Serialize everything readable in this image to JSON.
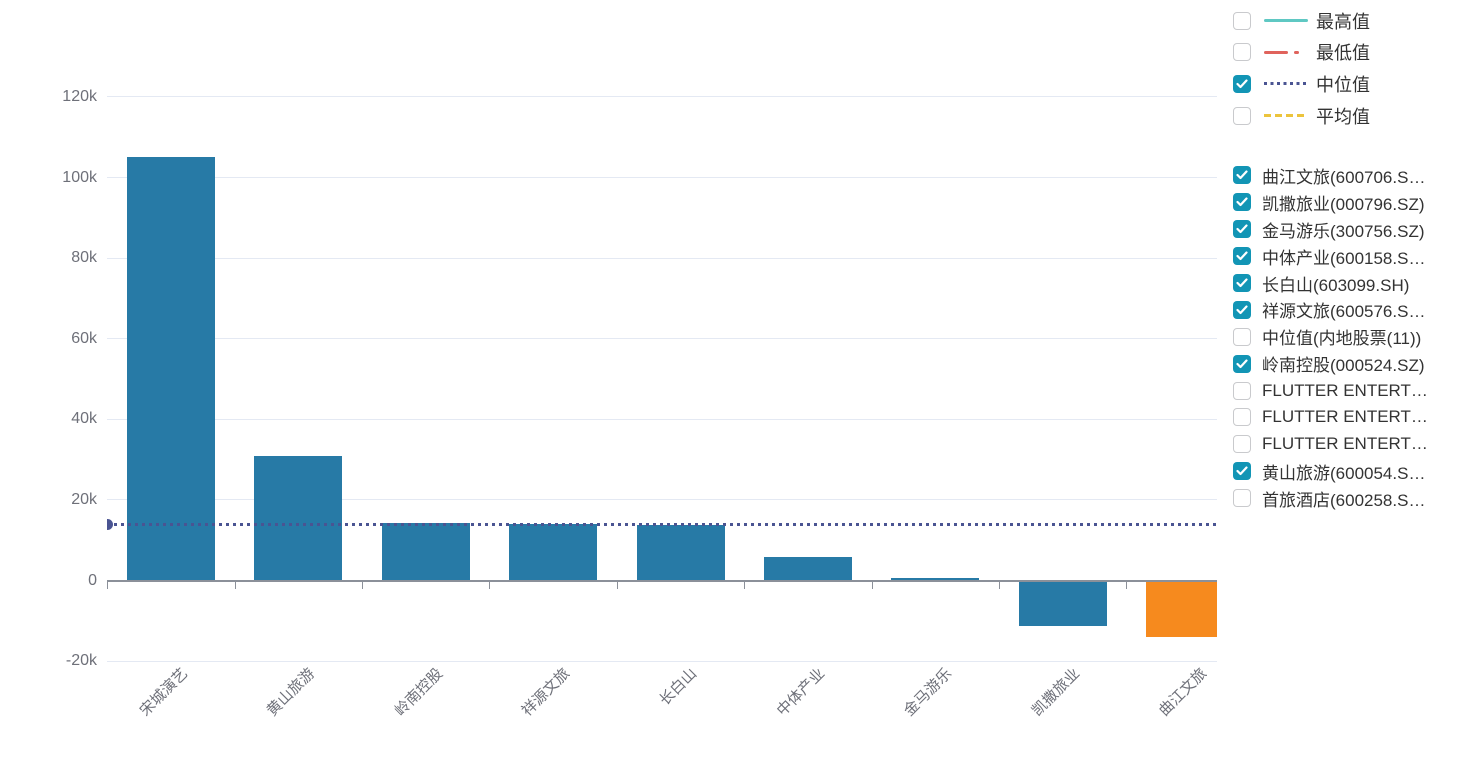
{
  "colors": {
    "bar_blue": "#277aa6",
    "bar_orange": "#f68a1e",
    "median_line": "#4a5492",
    "legend_max_teal": "#5fc8c3",
    "legend_min_red": "#e0635c",
    "legend_avg_yellow": "#ecc43d",
    "checkbox_checked": "#1295b5",
    "axis_text": "#6e7079",
    "grid_line": "#e4e9f3",
    "axis_line": "#8b9099",
    "legend_text": "#333333"
  },
  "chart_data": {
    "type": "bar",
    "title": "",
    "xlabel": "",
    "ylabel": "",
    "categories": [
      "宋城演艺",
      "黄山旅游",
      "岭南控股",
      "祥源文旅",
      "长白山",
      "中体产业",
      "金马游乐",
      "凯撒旅业",
      "曲江文旅"
    ],
    "values": [
      105000,
      31000,
      14200,
      13900,
      13800,
      5900,
      700,
      -11000,
      -13700
    ],
    "bar_colors": [
      "#277aa6",
      "#277aa6",
      "#277aa6",
      "#277aa6",
      "#277aa6",
      "#277aa6",
      "#277aa6",
      "#277aa6",
      "#f68a1e"
    ],
    "ylim": [
      -20000,
      120000
    ],
    "ytick_step": 20000,
    "ytick_labels": [
      "120k",
      "100k",
      "80k",
      "60k",
      "40k",
      "20k",
      "0",
      "-20k"
    ],
    "ytick_values": [
      120000,
      100000,
      80000,
      60000,
      40000,
      20000,
      0,
      -20000
    ],
    "grid": true,
    "legend_position": "right",
    "median_line": {
      "label": "中位值",
      "value": 14000
    }
  },
  "legend": {
    "lines": [
      {
        "label": "最高值",
        "checked": false,
        "style": "solid",
        "color": "#5fc8c3"
      },
      {
        "label": "最低值",
        "checked": false,
        "style": "dash-dot",
        "color": "#e0635c"
      },
      {
        "label": "中位值",
        "checked": true,
        "style": "dotted",
        "color": "#4a5492"
      },
      {
        "label": "平均值",
        "checked": false,
        "style": "dashed",
        "color": "#ecc43d"
      }
    ],
    "series": [
      {
        "label": "曲江文旅(600706.S…",
        "checked": true
      },
      {
        "label": "凯撒旅业(000796.SZ)",
        "checked": true
      },
      {
        "label": "金马游乐(300756.SZ)",
        "checked": true
      },
      {
        "label": "中体产业(600158.S…",
        "checked": true
      },
      {
        "label": "长白山(603099.SH)",
        "checked": true
      },
      {
        "label": "祥源文旅(600576.S…",
        "checked": true
      },
      {
        "label": "中位值(内地股票(11))",
        "checked": false
      },
      {
        "label": "岭南控股(000524.SZ)",
        "checked": true
      },
      {
        "label": "FLUTTER ENTERT…",
        "checked": false
      },
      {
        "label": "FLUTTER ENTERT…",
        "checked": false
      },
      {
        "label": "FLUTTER ENTERT…",
        "checked": false
      },
      {
        "label": "黄山旅游(600054.S…",
        "checked": true
      },
      {
        "label": "首旅酒店(600258.S…",
        "checked": false
      }
    ]
  }
}
